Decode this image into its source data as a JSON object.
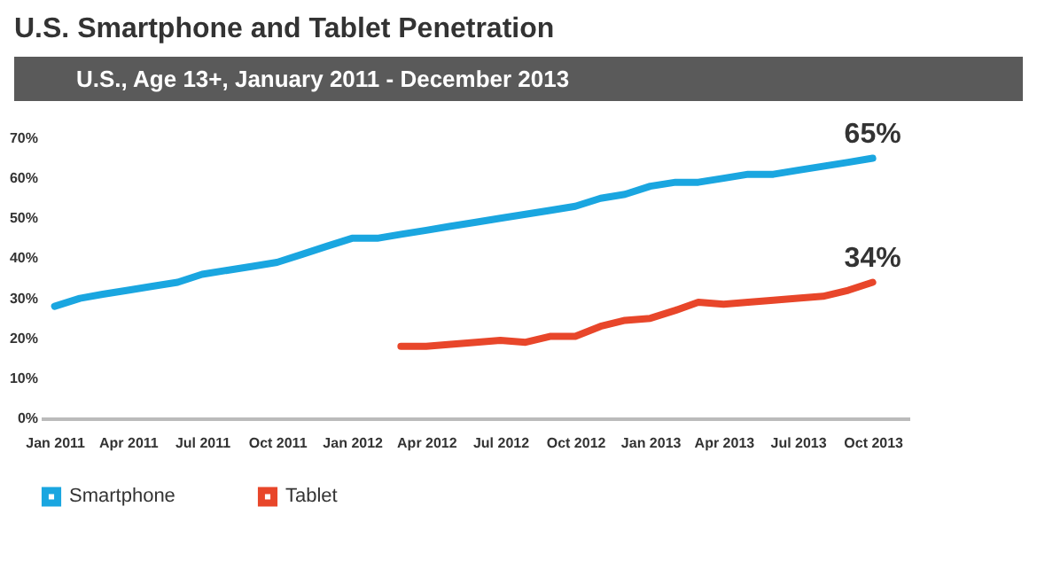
{
  "chart_data": {
    "type": "line",
    "title": "U.S. Smartphone and Tablet Penetration",
    "subtitle": "U.S., Age 13+, January 2011 - December 2013",
    "x": [
      "2011-01",
      "2011-02",
      "2011-03",
      "2011-04",
      "2011-05",
      "2011-06",
      "2011-07",
      "2011-08",
      "2011-09",
      "2011-10",
      "2011-11",
      "2011-12",
      "2012-01",
      "2012-02",
      "2012-03",
      "2012-04",
      "2012-05",
      "2012-06",
      "2012-07",
      "2012-08",
      "2012-09",
      "2012-10",
      "2012-11",
      "2012-12",
      "2013-01",
      "2013-02",
      "2013-03",
      "2013-04",
      "2013-05",
      "2013-06",
      "2013-07",
      "2013-08",
      "2013-09",
      "2013-10"
    ],
    "series": [
      {
        "name": "Smartphone",
        "color": "#1aa6e0",
        "values": [
          28,
          30,
          31,
          32,
          33,
          34,
          36,
          37,
          38,
          39,
          41,
          43,
          45,
          45,
          46,
          47,
          48,
          49,
          50,
          51,
          52,
          53,
          55,
          56,
          58,
          59,
          59,
          60,
          61,
          61,
          62,
          63,
          64,
          65
        ]
      },
      {
        "name": "Tablet",
        "color": "#e8462a",
        "values": [
          null,
          null,
          null,
          null,
          null,
          null,
          null,
          null,
          null,
          null,
          null,
          null,
          null,
          null,
          18,
          18,
          18.5,
          19,
          19.5,
          19,
          20.5,
          20.5,
          23,
          24.5,
          25,
          27,
          29,
          28.5,
          29,
          29.5,
          30,
          30.5,
          32,
          34
        ]
      }
    ],
    "annotations": [
      {
        "text": "65%",
        "x": "2013-10",
        "y": 65
      },
      {
        "text": "34%",
        "x": "2013-10",
        "y": 34
      }
    ],
    "xlim": [
      "2010-12-15",
      "2013-11-15"
    ],
    "xticks": [
      {
        "value": "2011-01",
        "label": "Jan 2011"
      },
      {
        "value": "2011-04",
        "label": "Apr 2011"
      },
      {
        "value": "2011-07",
        "label": "Jul 2011"
      },
      {
        "value": "2011-10",
        "label": "Oct 2011"
      },
      {
        "value": "2012-01",
        "label": "Jan 2012"
      },
      {
        "value": "2012-04",
        "label": "Apr 2012"
      },
      {
        "value": "2012-07",
        "label": "Jul 2012"
      },
      {
        "value": "2012-10",
        "label": "Oct 2012"
      },
      {
        "value": "2013-01",
        "label": "Jan 2013"
      },
      {
        "value": "2013-04",
        "label": "Apr 2013"
      },
      {
        "value": "2013-07",
        "label": "Jul 2013"
      },
      {
        "value": "2013-10",
        "label": "Oct 2013"
      }
    ],
    "ylim": [
      0,
      70
    ],
    "yticks": [
      {
        "value": 0,
        "label": "0%"
      },
      {
        "value": 10,
        "label": "10%"
      },
      {
        "value": 20,
        "label": "20%"
      },
      {
        "value": 30,
        "label": "30%"
      },
      {
        "value": 40,
        "label": "40%"
      },
      {
        "value": 50,
        "label": "50%"
      },
      {
        "value": 60,
        "label": "60%"
      },
      {
        "value": 70,
        "label": "70%"
      }
    ],
    "legend": "bottom",
    "grid": false
  }
}
